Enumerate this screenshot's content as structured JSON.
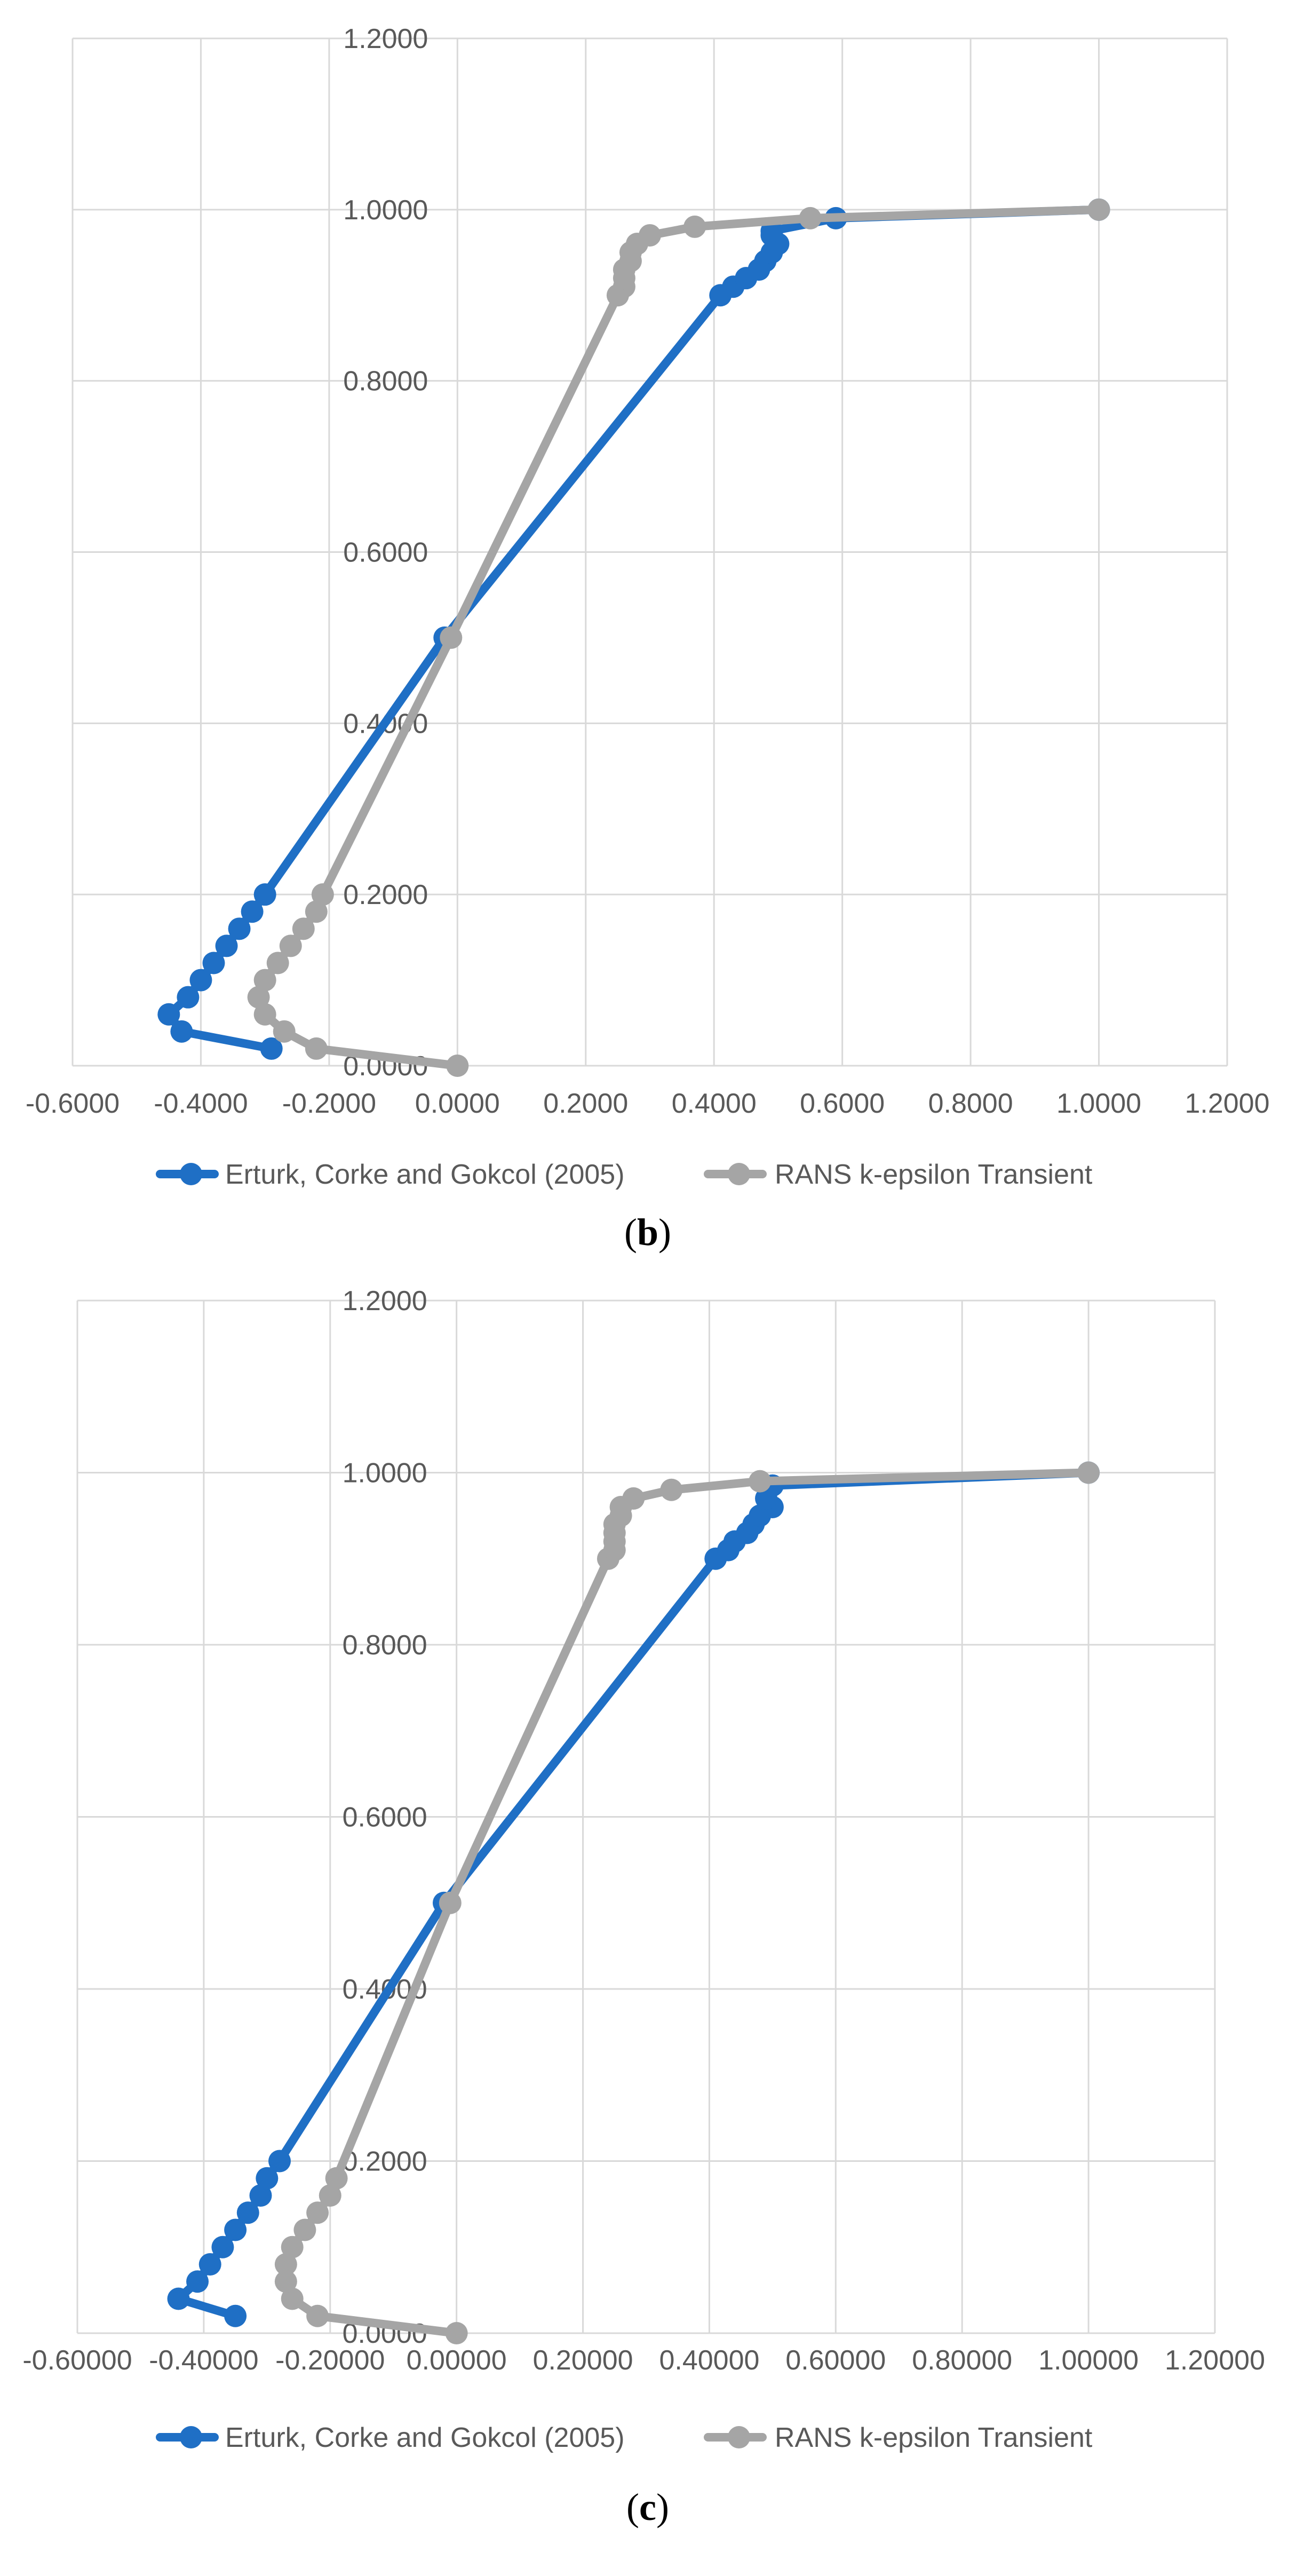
{
  "chart_data": [
    {
      "type": "line",
      "caption": "(b)",
      "caption_letter": "b",
      "xlim": [
        -0.6,
        1.2
      ],
      "ylim": [
        0,
        1.2
      ],
      "x_tick_labels": [
        "-0.6000",
        "-0.4000",
        "-0.2000",
        "0.0000",
        "0.2000",
        "0.4000",
        "0.6000",
        "0.8000",
        "1.0000",
        "1.2000"
      ],
      "x_tick_values": [
        -0.6,
        -0.4,
        -0.2,
        0.0,
        0.2,
        0.4,
        0.6,
        0.8,
        1.0,
        1.2
      ],
      "y_tick_labels": [
        "0.0000",
        "0.2000",
        "0.4000",
        "0.6000",
        "0.8000",
        "1.0000",
        "1.2000"
      ],
      "y_tick_values": [
        0.0,
        0.2,
        0.4,
        0.6,
        0.8,
        1.0,
        1.2
      ],
      "grid": "both",
      "legend_position": "bottom",
      "series": [
        {
          "name": "Erturk, Corke and Gokcol (2005)",
          "color": "#1f6fc5",
          "points": [
            [
              -0.29,
              0.02
            ],
            [
              -0.43,
              0.04
            ],
            [
              -0.45,
              0.06
            ],
            [
              -0.42,
              0.08
            ],
            [
              -0.4,
              0.1
            ],
            [
              -0.38,
              0.12
            ],
            [
              -0.36,
              0.14
            ],
            [
              -0.34,
              0.16
            ],
            [
              -0.32,
              0.18
            ],
            [
              -0.3,
              0.2
            ],
            [
              -0.02,
              0.5
            ],
            [
              0.41,
              0.9
            ],
            [
              0.43,
              0.91
            ],
            [
              0.45,
              0.92
            ],
            [
              0.47,
              0.93
            ],
            [
              0.48,
              0.94
            ],
            [
              0.49,
              0.95
            ],
            [
              0.5,
              0.96
            ],
            [
              0.49,
              0.97
            ],
            [
              0.49,
              0.975
            ],
            [
              0.59,
              0.99
            ],
            [
              1.0,
              1.0
            ]
          ]
        },
        {
          "name": "RANS k-epsilon Transient",
          "color": "#a5a5a5",
          "points": [
            [
              0.0,
              0.0
            ],
            [
              -0.22,
              0.02
            ],
            [
              -0.27,
              0.04
            ],
            [
              -0.3,
              0.06
            ],
            [
              -0.31,
              0.08
            ],
            [
              -0.3,
              0.1
            ],
            [
              -0.28,
              0.12
            ],
            [
              -0.26,
              0.14
            ],
            [
              -0.24,
              0.16
            ],
            [
              -0.22,
              0.18
            ],
            [
              -0.21,
              0.2
            ],
            [
              -0.01,
              0.5
            ],
            [
              0.25,
              0.9
            ],
            [
              0.26,
              0.91
            ],
            [
              0.26,
              0.92
            ],
            [
              0.26,
              0.93
            ],
            [
              0.27,
              0.94
            ],
            [
              0.27,
              0.95
            ],
            [
              0.28,
              0.96
            ],
            [
              0.3,
              0.97
            ],
            [
              0.37,
              0.98
            ],
            [
              0.55,
              0.99
            ],
            [
              1.0,
              1.0
            ]
          ]
        }
      ]
    },
    {
      "type": "line",
      "caption": "(c)",
      "caption_letter": "c",
      "xlim": [
        -0.6,
        1.2
      ],
      "ylim": [
        0,
        1.2
      ],
      "x_tick_labels": [
        "-0.60000",
        "-0.40000",
        "-0.20000",
        "0.00000",
        "0.20000",
        "0.40000",
        "0.60000",
        "0.80000",
        "1.00000",
        "1.20000"
      ],
      "x_tick_values": [
        -0.6,
        -0.4,
        -0.2,
        0.0,
        0.2,
        0.4,
        0.6,
        0.8,
        1.0,
        1.2
      ],
      "y_tick_labels": [
        "0.0000",
        "0.2000",
        "0.4000",
        "0.6000",
        "0.8000",
        "1.0000",
        "1.2000"
      ],
      "y_tick_values": [
        0.0,
        0.2,
        0.4,
        0.6,
        0.8,
        1.0,
        1.2
      ],
      "grid": "both",
      "legend_position": "bottom",
      "series": [
        {
          "name": "Erturk, Corke and Gokcol (2005)",
          "color": "#1f6fc5",
          "points": [
            [
              -0.35,
              0.02
            ],
            [
              -0.44,
              0.04
            ],
            [
              -0.41,
              0.06
            ],
            [
              -0.39,
              0.08
            ],
            [
              -0.37,
              0.1
            ],
            [
              -0.35,
              0.12
            ],
            [
              -0.33,
              0.14
            ],
            [
              -0.31,
              0.16
            ],
            [
              -0.3,
              0.18
            ],
            [
              -0.28,
              0.2
            ],
            [
              -0.02,
              0.5
            ],
            [
              0.41,
              0.9
            ],
            [
              0.43,
              0.91
            ],
            [
              0.44,
              0.92
            ],
            [
              0.46,
              0.93
            ],
            [
              0.47,
              0.94
            ],
            [
              0.48,
              0.95
            ],
            [
              0.5,
              0.96
            ],
            [
              0.49,
              0.97
            ],
            [
              0.5,
              0.985
            ],
            [
              1.0,
              1.0
            ]
          ]
        },
        {
          "name": "RANS k-epsilon Transient",
          "color": "#a5a5a5",
          "points": [
            [
              0.0,
              0.0
            ],
            [
              -0.22,
              0.02
            ],
            [
              -0.26,
              0.04
            ],
            [
              -0.27,
              0.06
            ],
            [
              -0.27,
              0.08
            ],
            [
              -0.26,
              0.1
            ],
            [
              -0.24,
              0.12
            ],
            [
              -0.22,
              0.14
            ],
            [
              -0.2,
              0.16
            ],
            [
              -0.19,
              0.18
            ],
            [
              -0.01,
              0.5
            ],
            [
              0.24,
              0.9
            ],
            [
              0.25,
              0.91
            ],
            [
              0.25,
              0.92
            ],
            [
              0.25,
              0.93
            ],
            [
              0.25,
              0.94
            ],
            [
              0.26,
              0.95
            ],
            [
              0.26,
              0.96
            ],
            [
              0.28,
              0.97
            ],
            [
              0.34,
              0.98
            ],
            [
              0.48,
              0.99
            ],
            [
              1.0,
              1.0
            ]
          ]
        }
      ]
    }
  ]
}
